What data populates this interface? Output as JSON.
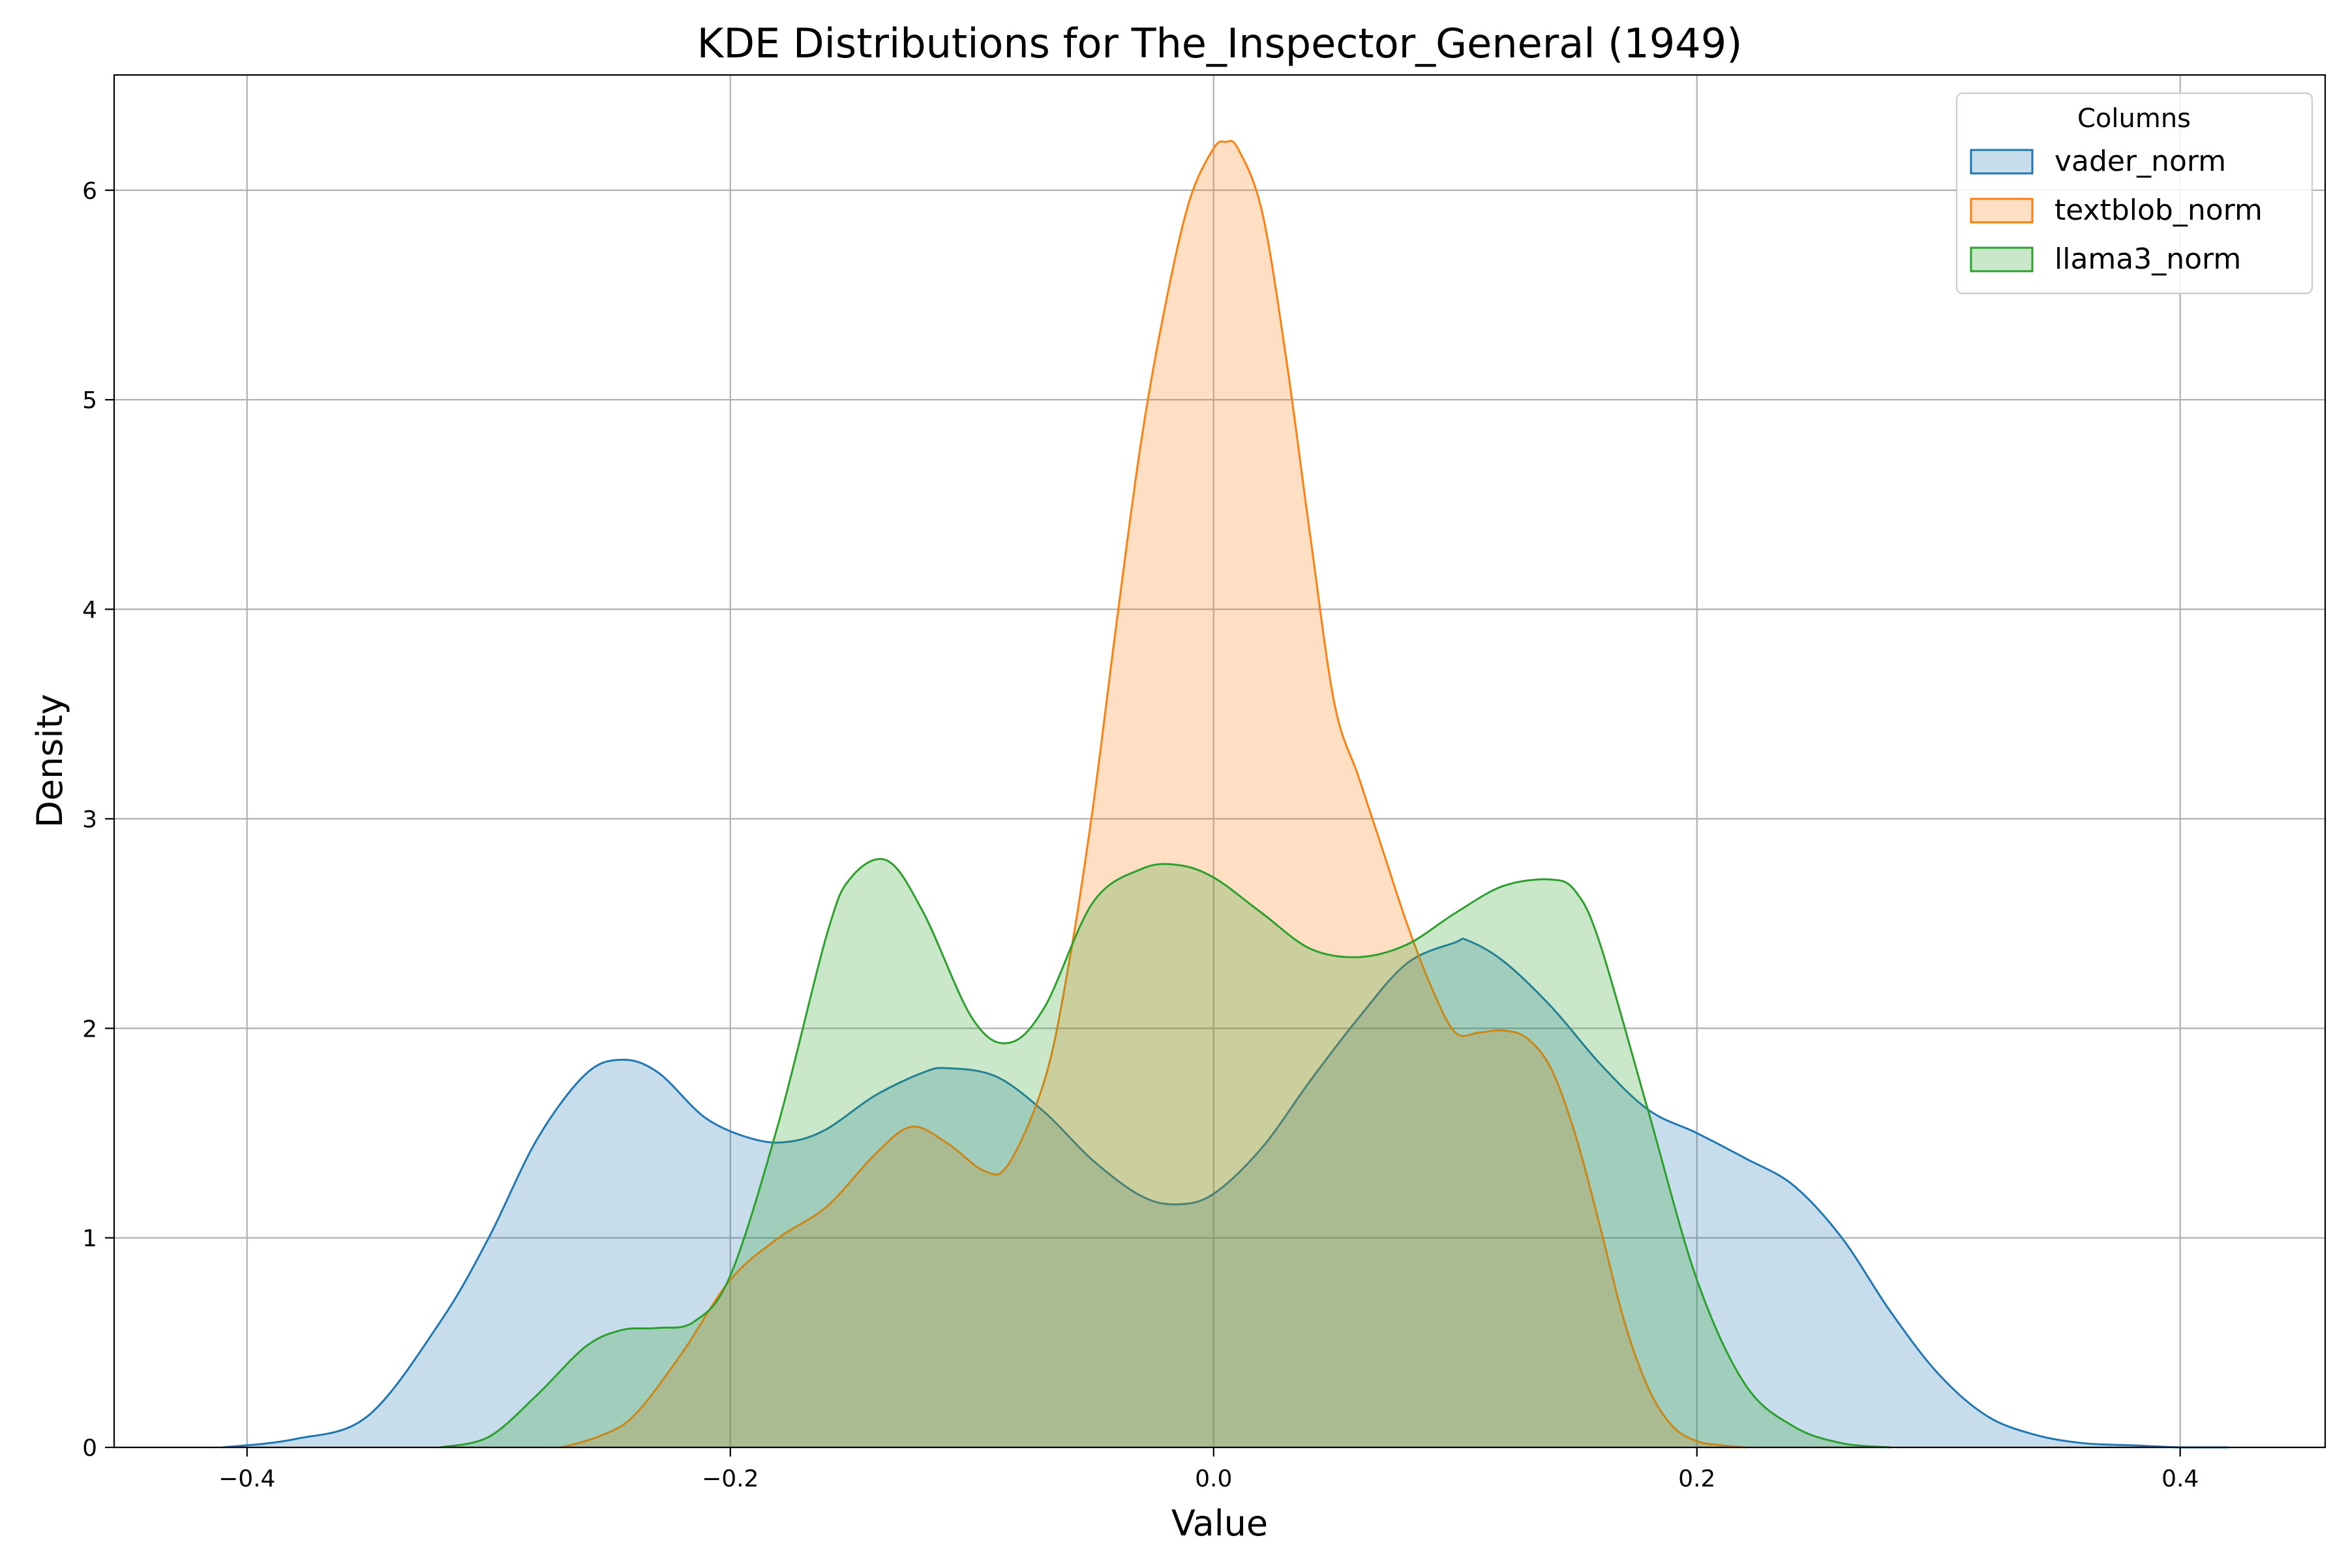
{
  "chart_data": {
    "type": "area",
    "title": "KDE Distributions for The_Inspector_General (1949)",
    "xlabel": "Value",
    "ylabel": "Density",
    "xlim": [
      -0.455,
      0.46
    ],
    "ylim": [
      0,
      6.55
    ],
    "xticks": [
      -0.4,
      -0.2,
      0.0,
      0.2,
      0.4
    ],
    "xtick_labels": [
      "−0.4",
      "−0.2",
      "0.0",
      "0.2",
      "0.4"
    ],
    "yticks": [
      0,
      1,
      2,
      3,
      4,
      5,
      6
    ],
    "ytick_labels": [
      "0",
      "1",
      "2",
      "3",
      "4",
      "5",
      "6"
    ],
    "grid": true,
    "legend": {
      "title": "Columns",
      "placement": "top-right"
    },
    "series": [
      {
        "name": "vader_norm",
        "color": "#1f77b4",
        "fill_opacity": 0.25,
        "x": [
          -0.41,
          -0.38,
          -0.35,
          -0.32,
          -0.3,
          -0.28,
          -0.26,
          -0.245,
          -0.23,
          -0.21,
          -0.19,
          -0.175,
          -0.16,
          -0.14,
          -0.12,
          -0.11,
          -0.09,
          -0.07,
          -0.05,
          -0.03,
          -0.015,
          0.0,
          0.02,
          0.04,
          0.06,
          0.08,
          0.1,
          0.105,
          0.12,
          0.14,
          0.16,
          0.18,
          0.2,
          0.22,
          0.24,
          0.26,
          0.28,
          0.3,
          0.32,
          0.34,
          0.36,
          0.38,
          0.4,
          0.42
        ],
        "y": [
          0.0,
          0.04,
          0.15,
          0.6,
          1.0,
          1.47,
          1.78,
          1.85,
          1.79,
          1.57,
          1.47,
          1.46,
          1.52,
          1.68,
          1.79,
          1.81,
          1.77,
          1.6,
          1.37,
          1.2,
          1.16,
          1.21,
          1.43,
          1.75,
          2.05,
          2.31,
          2.41,
          2.42,
          2.32,
          2.1,
          1.83,
          1.61,
          1.5,
          1.38,
          1.25,
          1.0,
          0.65,
          0.35,
          0.15,
          0.06,
          0.02,
          0.01,
          0.0,
          0.0
        ]
      },
      {
        "name": "textblob_norm",
        "color": "#ff7f0e",
        "fill_opacity": 0.25,
        "x": [
          -0.27,
          -0.255,
          -0.24,
          -0.22,
          -0.2,
          -0.18,
          -0.16,
          -0.14,
          -0.125,
          -0.11,
          -0.095,
          -0.085,
          -0.07,
          -0.06,
          -0.05,
          -0.04,
          -0.03,
          -0.02,
          -0.01,
          0.0,
          0.005,
          0.01,
          0.02,
          0.03,
          0.04,
          0.05,
          0.06,
          0.07,
          0.08,
          0.09,
          0.1,
          0.11,
          0.12,
          0.13,
          0.14,
          0.15,
          0.16,
          0.17,
          0.18,
          0.19,
          0.2,
          0.21,
          0.22
        ],
        "y": [
          0.0,
          0.05,
          0.15,
          0.45,
          0.8,
          1.0,
          1.15,
          1.4,
          1.53,
          1.45,
          1.32,
          1.35,
          1.75,
          2.3,
          3.05,
          3.95,
          4.8,
          5.45,
          5.95,
          6.2,
          6.23,
          6.2,
          5.9,
          5.2,
          4.35,
          3.55,
          3.2,
          2.85,
          2.5,
          2.2,
          1.98,
          1.98,
          1.99,
          1.95,
          1.8,
          1.48,
          1.05,
          0.6,
          0.28,
          0.1,
          0.03,
          0.01,
          0.0
        ]
      },
      {
        "name": "llama3_norm",
        "color": "#2ca02c",
        "fill_opacity": 0.25,
        "x": [
          -0.32,
          -0.3,
          -0.28,
          -0.26,
          -0.245,
          -0.23,
          -0.215,
          -0.2,
          -0.18,
          -0.16,
          -0.15,
          -0.135,
          -0.12,
          -0.1,
          -0.085,
          -0.07,
          -0.05,
          -0.03,
          -0.015,
          0.0,
          0.02,
          0.04,
          0.06,
          0.08,
          0.1,
          0.12,
          0.14,
          0.15,
          0.16,
          0.18,
          0.2,
          0.22,
          0.24,
          0.26,
          0.28
        ],
        "y": [
          0.0,
          0.05,
          0.25,
          0.48,
          0.56,
          0.57,
          0.6,
          0.82,
          1.55,
          2.45,
          2.72,
          2.8,
          2.55,
          2.05,
          1.93,
          2.1,
          2.6,
          2.76,
          2.78,
          2.72,
          2.55,
          2.38,
          2.34,
          2.4,
          2.55,
          2.68,
          2.71,
          2.65,
          2.4,
          1.6,
          0.8,
          0.3,
          0.1,
          0.02,
          0.0
        ]
      }
    ]
  }
}
